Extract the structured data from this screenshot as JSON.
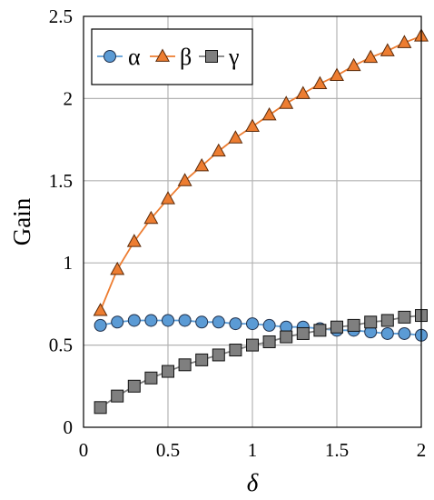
{
  "chart_data": {
    "type": "line",
    "title": "",
    "xlabel": "δ",
    "ylabel": "Gain",
    "xlim": [
      0,
      2
    ],
    "ylim": [
      0,
      2.5
    ],
    "xticks": [
      0,
      0.5,
      1,
      1.5,
      2
    ],
    "xtick_labels": [
      "0",
      "0.5",
      "1",
      "1.5",
      "2"
    ],
    "yticks": [
      0,
      0.5,
      1,
      1.5,
      2,
      2.5
    ],
    "ytick_labels": [
      "0",
      "0.5",
      "1",
      "1.5",
      "2",
      "2.5"
    ],
    "grid": true,
    "legend_position": "top-left",
    "x": [
      0.1,
      0.2,
      0.3,
      0.4,
      0.5,
      0.6,
      0.7,
      0.8,
      0.9,
      1.0,
      1.1,
      1.2,
      1.3,
      1.4,
      1.5,
      1.6,
      1.7,
      1.8,
      1.9,
      2.0
    ],
    "series": [
      {
        "name": "α",
        "marker": "circle",
        "color": "#5B9BD5",
        "values": [
          0.62,
          0.64,
          0.65,
          0.65,
          0.65,
          0.65,
          0.64,
          0.64,
          0.63,
          0.63,
          0.62,
          0.61,
          0.61,
          0.6,
          0.59,
          0.59,
          0.58,
          0.57,
          0.57,
          0.56
        ]
      },
      {
        "name": "β",
        "marker": "triangle",
        "color": "#ED7D31",
        "values": [
          0.71,
          0.96,
          1.13,
          1.27,
          1.39,
          1.5,
          1.59,
          1.68,
          1.76,
          1.83,
          1.9,
          1.97,
          2.03,
          2.09,
          2.14,
          2.2,
          2.25,
          2.29,
          2.34,
          2.38
        ]
      },
      {
        "name": "γ",
        "marker": "square",
        "color": "#7F7F7F",
        "values": [
          0.12,
          0.19,
          0.25,
          0.3,
          0.34,
          0.38,
          0.41,
          0.44,
          0.47,
          0.5,
          0.52,
          0.55,
          0.57,
          0.59,
          0.61,
          0.62,
          0.64,
          0.65,
          0.67,
          0.68
        ]
      }
    ]
  }
}
